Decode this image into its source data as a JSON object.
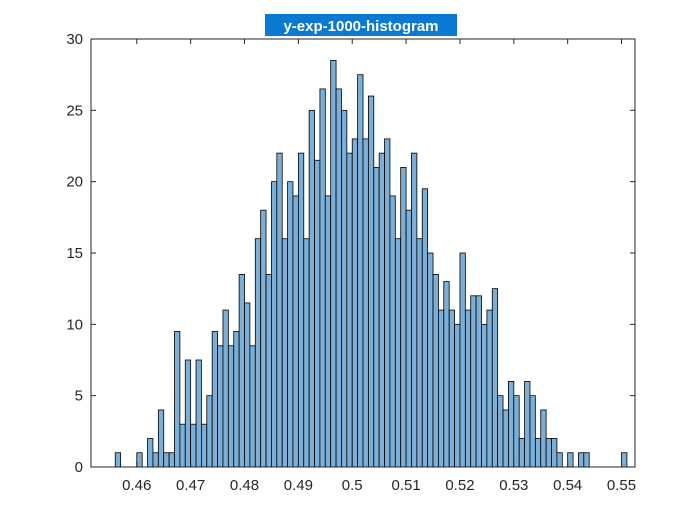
{
  "chart_data": {
    "type": "bar",
    "title": "y-exp-1000-histogram",
    "xlabel": "",
    "ylabel": "",
    "xlim": [
      0.4515,
      0.5525
    ],
    "ylim": [
      0,
      30
    ],
    "xticks": [
      0.46,
      0.47,
      0.48,
      0.49,
      0.5,
      0.51,
      0.52,
      0.53,
      0.54,
      0.55
    ],
    "xtick_labels": [
      "0.46",
      "0.47",
      "0.48",
      "0.49",
      "0.5",
      "0.51",
      "0.52",
      "0.53",
      "0.54",
      "0.55"
    ],
    "yticks": [
      0,
      5,
      10,
      15,
      20,
      25,
      30
    ],
    "ytick_labels": [
      "0",
      "5",
      "10",
      "15",
      "20",
      "25",
      "30"
    ],
    "grid": false,
    "bin_start": 0.456,
    "bin_width": 0.001,
    "values": [
      1,
      0,
      0,
      0,
      1,
      0,
      2,
      1,
      4,
      1,
      1,
      9.5,
      3,
      7.5,
      3,
      7.5,
      3,
      5,
      9.5,
      8.5,
      11,
      8.5,
      9.5,
      13.5,
      11.5,
      8.5,
      16,
      18,
      13.5,
      20,
      22,
      16,
      20,
      19,
      22,
      16,
      25,
      21.5,
      26.5,
      19,
      28.5,
      26.5,
      25,
      22,
      23,
      27.5,
      23,
      26,
      21,
      22,
      23,
      19,
      16,
      21,
      18,
      22,
      16,
      19.5,
      15,
      13.5,
      11,
      13,
      11,
      10,
      15,
      11,
      12,
      12,
      10,
      11,
      12.5,
      5,
      4,
      6,
      5,
      2,
      6,
      5,
      2,
      4,
      2,
      2,
      1,
      0,
      1,
      0,
      1,
      1,
      0,
      0,
      0,
      0,
      0,
      0,
      1
    ],
    "bar_fill": "#7cafd8",
    "bar_edge": "#000000",
    "title_bg": "#0b78d1"
  }
}
